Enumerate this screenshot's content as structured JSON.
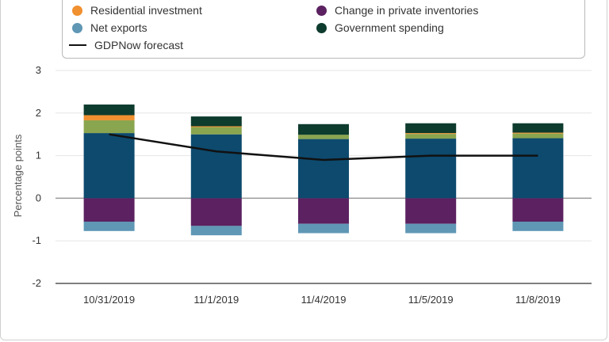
{
  "chart_data": {
    "type": "bar",
    "stacked": true,
    "ylabel": "Percentage points",
    "ylim": [
      -2,
      3
    ],
    "yticks": [
      "3",
      "2",
      "1",
      "0",
      "-1",
      "-2"
    ],
    "categories": [
      "10/31/2019",
      "11/1/2019",
      "11/4/2019",
      "11/5/2019",
      "11/8/2019"
    ],
    "legend": [
      {
        "name": "Residential investment",
        "color": "#f0902f",
        "kind": "dot"
      },
      {
        "name": "Change in private inventories",
        "color": "#5b2160",
        "kind": "dot"
      },
      {
        "name": "Net exports",
        "color": "#5f97b5",
        "kind": "dot"
      },
      {
        "name": "Government spending",
        "color": "#0d3b2d",
        "kind": "dot"
      },
      {
        "name": "GDPNow forecast",
        "color": "#111111",
        "kind": "line"
      }
    ],
    "series": [
      {
        "key": "pce",
        "color": "#0d4a6e",
        "values": [
          1.53,
          1.5,
          1.39,
          1.4,
          1.41
        ]
      },
      {
        "key": "green",
        "color": "#8aa54f",
        "values": [
          0.3,
          0.17,
          0.1,
          0.11,
          0.11
        ]
      },
      {
        "name": "Residential investment",
        "color": "#f0902f",
        "values": [
          0.12,
          0.02,
          0.0,
          0.02,
          0.02
        ]
      },
      {
        "name": "Government spending",
        "color": "#0d3b2d",
        "values": [
          0.25,
          0.23,
          0.25,
          0.23,
          0.22
        ]
      },
      {
        "name": "Change in private inventories",
        "color": "#5b2160",
        "values": [
          -0.55,
          -0.65,
          -0.6,
          -0.6,
          -0.55
        ]
      },
      {
        "name": "Net exports",
        "color": "#5f97b5",
        "values": [
          -0.22,
          -0.22,
          -0.22,
          -0.22,
          -0.22
        ]
      }
    ],
    "forecast": {
      "name": "GDPNow forecast",
      "values": [
        1.5,
        1.1,
        0.9,
        1.0,
        1.0
      ]
    },
    "grid": true
  }
}
